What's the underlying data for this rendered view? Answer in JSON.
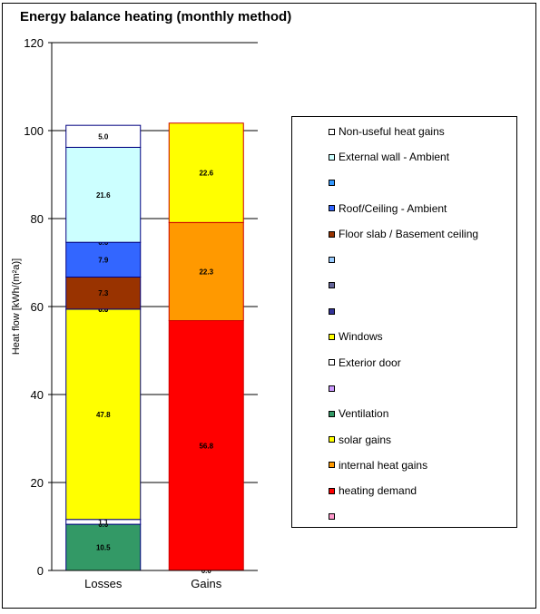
{
  "chart_data": {
    "type": "bar",
    "stacked": true,
    "title": "Energy balance heating (monthly method)",
    "ylabel": "Heat flow [kWh/(m²a)]",
    "xlabel": "",
    "ylim": [
      0,
      120
    ],
    "yticks": [
      "0",
      "20",
      "40",
      "60",
      "80",
      "100",
      "120"
    ],
    "categories": [
      "Losses",
      "Gains"
    ],
    "grid": true,
    "legend_position": "right",
    "stacks": [
      {
        "category": "Losses",
        "segments": [
          {
            "name": "Ventilation",
            "value": 10.5,
            "label": "10.5",
            "color": "#339966"
          },
          {
            "name": "",
            "value": 0.0,
            "label": "0.0",
            "color": "#cc99ff"
          },
          {
            "name": "Exterior door",
            "value": 1.1,
            "label": "1.1",
            "color": "#ffffff"
          },
          {
            "name": "Windows",
            "value": 47.8,
            "label": "47.8",
            "color": "#ffff00"
          },
          {
            "name": "",
            "value": 0.0,
            "label": "0.0",
            "color": "#333399"
          },
          {
            "name": "",
            "value": 0.0,
            "label": "0.0",
            "color": "#666699"
          },
          {
            "name": "",
            "value": 0.0,
            "label": "0.0",
            "color": "#99ccff"
          },
          {
            "name": "Floor slab / Basement ceiling",
            "value": 7.3,
            "label": "7.3",
            "color": "#993300"
          },
          {
            "name": "Roof/Ceiling - Ambient",
            "value": 7.9,
            "label": "7.9",
            "color": "#3366ff"
          },
          {
            "name": "",
            "value": 0.0,
            "label": "0.0",
            "color": "#3399ff"
          },
          {
            "name": "External wall - Ambient",
            "value": 21.6,
            "label": "21.6",
            "color": "#ccffff"
          },
          {
            "name": "Non-useful heat gains",
            "value": 5.0,
            "label": "5.0",
            "color": "#ffffff"
          }
        ]
      },
      {
        "category": "Gains",
        "segments": [
          {
            "name": "",
            "value": 0.0,
            "label": "0.0",
            "color": "#ff99cc"
          },
          {
            "name": "heating demand",
            "value": 56.8,
            "label": "56.8",
            "color": "#ff0000"
          },
          {
            "name": "internal heat gains",
            "value": 22.3,
            "label": "22.3",
            "color": "#ff9900"
          },
          {
            "name": "solar gains",
            "value": 22.6,
            "label": "22.6",
            "color": "#ffff00"
          }
        ]
      }
    ],
    "legend": [
      {
        "label": "Non-useful heat gains",
        "color": "#ffffff"
      },
      {
        "label": "External wall - Ambient",
        "color": "#ccffff"
      },
      {
        "label": "",
        "color": "#3399ff"
      },
      {
        "label": "Roof/Ceiling - Ambient",
        "color": "#3366ff"
      },
      {
        "label": "Floor slab / Basement ceiling",
        "color": "#993300"
      },
      {
        "label": "",
        "color": "#99ccff"
      },
      {
        "label": "",
        "color": "#666699"
      },
      {
        "label": "",
        "color": "#333399"
      },
      {
        "label": "Windows",
        "color": "#ffff00"
      },
      {
        "label": "Exterior door",
        "color": "#ffffff"
      },
      {
        "label": "",
        "color": "#cc99ff"
      },
      {
        "label": "Ventilation",
        "color": "#339966"
      },
      {
        "label": "solar gains",
        "color": "#ffff00"
      },
      {
        "label": "internal heat gains",
        "color": "#ff9900"
      },
      {
        "label": "heating demand",
        "color": "#ff0000"
      },
      {
        "label": "",
        "color": "#ff99cc"
      }
    ]
  }
}
